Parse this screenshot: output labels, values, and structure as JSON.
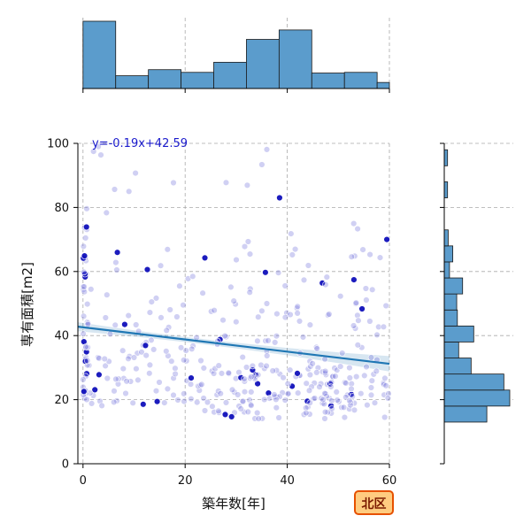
{
  "chart_data": {
    "type": "scatter",
    "title": "",
    "xlabel": "築年数[年]",
    "ylabel": "専有面積[m2]",
    "xlim": [
      -1,
      60
    ],
    "ylim": [
      0,
      100
    ],
    "xticks": [
      0,
      20,
      40,
      60
    ],
    "yticks": [
      0,
      20,
      40,
      60,
      80,
      100
    ],
    "grid": true,
    "regression": {
      "label": "y=-0.19x+42.59",
      "slope": -0.19,
      "intercept": 42.59,
      "ci_halfwidth_at_ends": 2.4,
      "ci_halfwidth_mid": 0.8,
      "color": "#1f77b4"
    },
    "point_color": "#1a1acc",
    "marginal_x": {
      "type": "histogram",
      "bin_edges": [
        0,
        6.4,
        12.8,
        19.2,
        25.6,
        32,
        38.4,
        44.8,
        51.2,
        57.6,
        64
      ],
      "heights": [
        1.0,
        0.19,
        0.28,
        0.24,
        0.39,
        0.73,
        0.87,
        0.23,
        0.24,
        0.09
      ]
    },
    "marginal_y": {
      "type": "histogram",
      "bin_edges": [
        13,
        18,
        23,
        28,
        33,
        38,
        43,
        48,
        53,
        58,
        63,
        68,
        73,
        78,
        83,
        88,
        93,
        98,
        103
      ],
      "widths": [
        0.65,
        1.0,
        0.91,
        0.41,
        0.22,
        0.45,
        0.2,
        0.19,
        0.28,
        0.08,
        0.13,
        0.06,
        0,
        0,
        0.05,
        0,
        0.05,
        0
      ],
      "bar_color": "#5b9ccc"
    },
    "badge": "北区"
  }
}
